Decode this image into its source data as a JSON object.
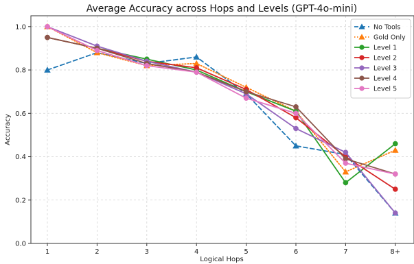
{
  "chart_data": {
    "type": "line",
    "title": "Average Accuracy across Hops and Levels (GPT-4o-mini)",
    "xlabel": "Logical Hops",
    "ylabel": "Accuracy",
    "categories": [
      "1",
      "2",
      "3",
      "4",
      "5",
      "6",
      "7",
      "8+"
    ],
    "y_ticks": [
      "0.0",
      "0.2",
      "0.4",
      "0.6",
      "0.8",
      "1.0"
    ],
    "ylim": [
      0,
      1.05
    ],
    "grid": true,
    "legend_position": "top-right",
    "series": [
      {
        "name": "No Tools",
        "color": "#1f77b4",
        "line_style": "dashed",
        "marker": "triangle",
        "values": [
          0.8,
          0.88,
          0.83,
          0.86,
          0.69,
          0.45,
          0.41,
          0.14
        ]
      },
      {
        "name": "Gold Only",
        "color": "#ff7f0e",
        "line_style": "dotted",
        "marker": "triangle",
        "values": [
          1.0,
          0.88,
          0.82,
          0.83,
          0.72,
          0.61,
          0.33,
          0.43
        ]
      },
      {
        "name": "Level 1",
        "color": "#2ca02c",
        "line_style": "solid",
        "marker": "circle",
        "values": [
          0.95,
          0.9,
          0.85,
          0.8,
          0.7,
          0.61,
          0.28,
          0.46
        ]
      },
      {
        "name": "Level 2",
        "color": "#d62728",
        "line_style": "solid",
        "marker": "circle",
        "values": [
          0.95,
          0.9,
          0.84,
          0.81,
          0.71,
          0.58,
          0.4,
          0.25
        ]
      },
      {
        "name": "Level 3",
        "color": "#9467bd",
        "line_style": "solid",
        "marker": "circle",
        "values": [
          1.0,
          0.91,
          0.84,
          0.79,
          0.69,
          0.53,
          0.42,
          0.14
        ]
      },
      {
        "name": "Level 4",
        "color": "#8c564b",
        "line_style": "solid",
        "marker": "circle",
        "values": [
          0.95,
          0.9,
          0.83,
          0.79,
          0.7,
          0.63,
          0.39,
          0.32
        ]
      },
      {
        "name": "Level 5",
        "color": "#e377c2",
        "line_style": "solid",
        "marker": "circle",
        "values": [
          1.0,
          0.89,
          0.82,
          0.79,
          0.67,
          0.6,
          0.37,
          0.32
        ]
      }
    ]
  }
}
